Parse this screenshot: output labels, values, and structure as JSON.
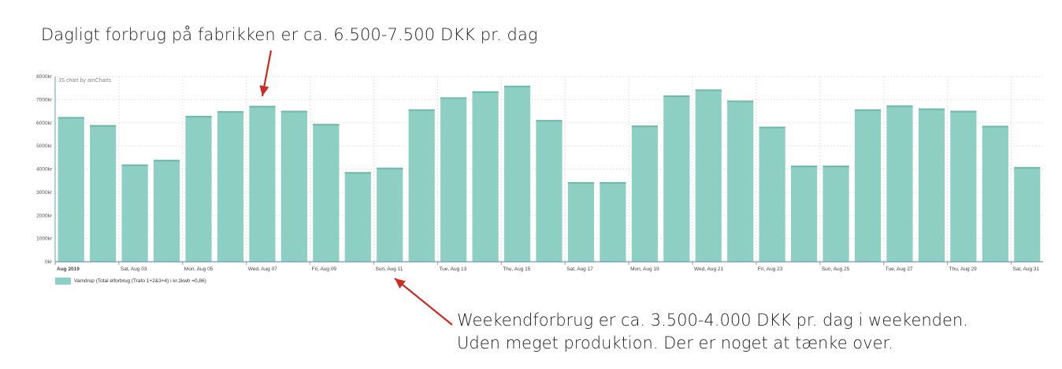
{
  "annotations": {
    "top": "Dagligt forbrug på fabrikken er ca. 6.500-7.500 DKK pr. dag",
    "bottom_line1": "Weekendforbrug er ca. 3.500-4.000 DKK pr. dag i weekenden.",
    "bottom_line2": "Uden meget produktion. Der er noget at tænke over."
  },
  "credit": "JS chart by amCharts",
  "colors": {
    "bar": "#8ecfc3",
    "bar_top": "#6fb8aa",
    "arrow": "#cc2a22",
    "grid": "#e3e3e3",
    "axis": "#6c9db3"
  },
  "chart_data": {
    "type": "bar",
    "ylim": [
      0,
      8000
    ],
    "y_ticks": [
      0,
      1000,
      2000,
      3000,
      4000,
      5000,
      6000,
      7000,
      8000
    ],
    "y_tick_labels": [
      "0kr",
      "1000kr",
      "2000kr",
      "3000kr",
      "4000kr",
      "5000kr",
      "6000kr",
      "7000kr",
      "8000kr"
    ],
    "x_tick_labels": [
      {
        "index": 0,
        "label": "Aug 2019",
        "bold": true
      },
      {
        "index": 2,
        "label": "Sat, Aug 03"
      },
      {
        "index": 4,
        "label": "Mon, Aug 05"
      },
      {
        "index": 6,
        "label": "Wed, Aug 07"
      },
      {
        "index": 8,
        "label": "Fri, Aug 09"
      },
      {
        "index": 10,
        "label": "Sun, Aug 11"
      },
      {
        "index": 12,
        "label": "Tue, Aug 13"
      },
      {
        "index": 14,
        "label": "Thu, Aug 15"
      },
      {
        "index": 16,
        "label": "Sat, Aug 17"
      },
      {
        "index": 18,
        "label": "Mon, Aug 19"
      },
      {
        "index": 20,
        "label": "Wed, Aug 21"
      },
      {
        "index": 22,
        "label": "Fri, Aug 23"
      },
      {
        "index": 24,
        "label": "Sun, Aug 25"
      },
      {
        "index": 26,
        "label": "Tue, Aug 27"
      },
      {
        "index": 28,
        "label": "Thu, Aug 29"
      },
      {
        "index": 30,
        "label": "Sat, Aug 31"
      }
    ],
    "x": [
      "2019-08-01",
      "2019-08-02",
      "2019-08-03",
      "2019-08-04",
      "2019-08-05",
      "2019-08-06",
      "2019-08-07",
      "2019-08-08",
      "2019-08-09",
      "2019-08-10",
      "2019-08-11",
      "2019-08-12",
      "2019-08-13",
      "2019-08-14",
      "2019-08-15",
      "2019-08-16",
      "2019-08-17",
      "2019-08-18",
      "2019-08-19",
      "2019-08-20",
      "2019-08-21",
      "2019-08-22",
      "2019-08-23",
      "2019-08-24",
      "2019-08-25",
      "2019-08-26",
      "2019-08-27",
      "2019-08-28",
      "2019-08-29",
      "2019-08-30",
      "2019-08-31"
    ],
    "series": [
      {
        "name": "Vamdrup (Total elforbrug (Trafo 1+2&3+4) i kr.1kwh =0,86)",
        "values": [
          6250,
          5900,
          4200,
          4400,
          6300,
          6500,
          6730,
          6520,
          5950,
          3870,
          4060,
          6580,
          7100,
          7360,
          7600,
          6120,
          3440,
          3440,
          5880,
          7180,
          7440,
          6960,
          5830,
          4150,
          4150,
          6580,
          6750,
          6620,
          6520,
          5870,
          4090
        ]
      }
    ],
    "grid": true,
    "legend_position": "bottom-left"
  }
}
